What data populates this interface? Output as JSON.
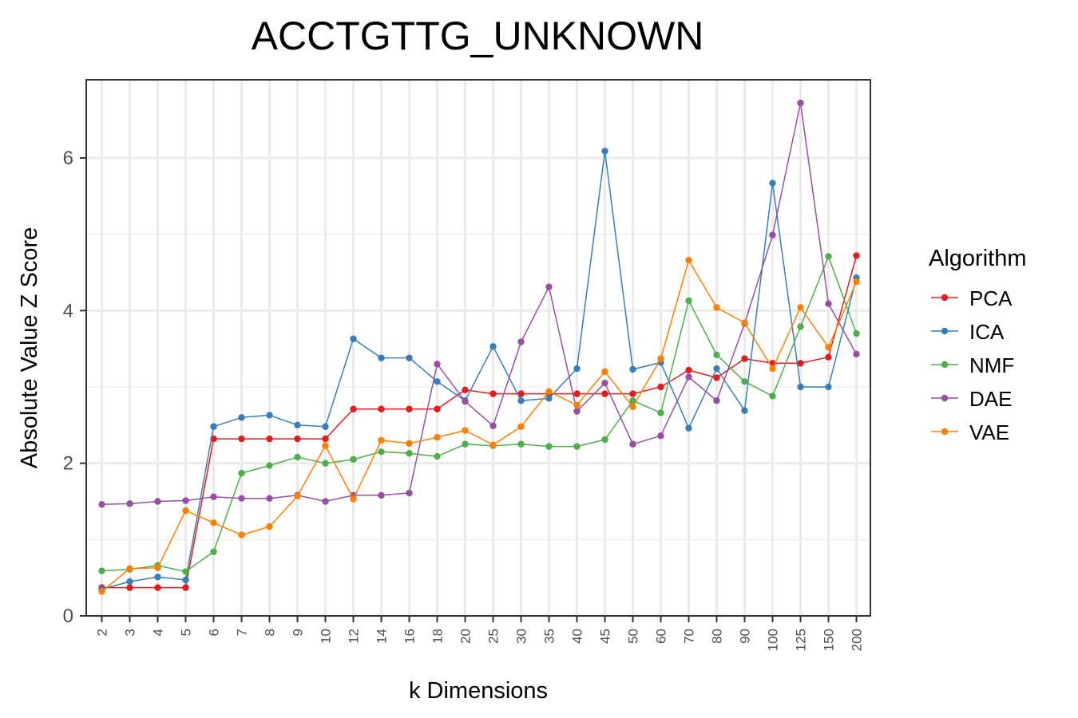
{
  "chart_data": {
    "type": "line",
    "title": "ACCTGTTG_UNKNOWN",
    "xlabel": "k Dimensions",
    "ylabel": "Absolute Value Z Score",
    "categories": [
      "2",
      "3",
      "4",
      "5",
      "6",
      "7",
      "8",
      "9",
      "10",
      "12",
      "14",
      "16",
      "18",
      "20",
      "25",
      "30",
      "35",
      "40",
      "45",
      "50",
      "60",
      "70",
      "80",
      "90",
      "100",
      "125",
      "150",
      "200"
    ],
    "ylim": [
      0,
      7
    ],
    "yticks": [
      0,
      2,
      4,
      6
    ],
    "grid": true,
    "legend_title": "Algorithm",
    "legend_position": "right",
    "series": [
      {
        "name": "PCA",
        "color": "#e41a1c",
        "values": [
          0.37,
          0.37,
          0.37,
          0.37,
          2.32,
          2.32,
          2.32,
          2.32,
          2.32,
          2.71,
          2.71,
          2.71,
          2.71,
          2.96,
          2.91,
          2.91,
          2.91,
          2.91,
          2.91,
          2.91,
          3.0,
          3.22,
          3.12,
          3.37,
          3.31,
          3.31,
          3.39,
          4.72
        ]
      },
      {
        "name": "ICA",
        "color": "#377eb8",
        "values": [
          0.35,
          0.45,
          0.51,
          0.47,
          2.48,
          2.6,
          2.63,
          2.5,
          2.48,
          3.63,
          3.38,
          3.38,
          3.07,
          2.82,
          3.53,
          2.82,
          2.85,
          3.24,
          6.09,
          3.23,
          3.32,
          2.46,
          3.24,
          2.69,
          5.67,
          3.0,
          3.0,
          4.43
        ]
      },
      {
        "name": "NMF",
        "color": "#4daf4a",
        "values": [
          0.59,
          0.61,
          0.66,
          0.58,
          0.84,
          1.87,
          1.97,
          2.08,
          2.0,
          2.05,
          2.15,
          2.13,
          2.09,
          2.25,
          2.23,
          2.25,
          2.22,
          2.22,
          2.31,
          2.82,
          2.66,
          4.13,
          3.42,
          3.07,
          2.88,
          3.79,
          4.71,
          3.7
        ]
      },
      {
        "name": "DAE",
        "color": "#984ea3",
        "values": [
          1.46,
          1.47,
          1.5,
          1.51,
          1.56,
          1.54,
          1.54,
          1.58,
          1.5,
          1.58,
          1.58,
          1.61,
          3.3,
          2.81,
          2.49,
          3.59,
          4.31,
          2.68,
          3.05,
          2.25,
          2.36,
          3.13,
          2.82,
          3.83,
          4.99,
          6.72,
          4.09,
          3.43
        ]
      },
      {
        "name": "VAE",
        "color": "#ff7f00",
        "values": [
          0.32,
          0.62,
          0.63,
          1.38,
          1.22,
          1.06,
          1.17,
          1.57,
          2.23,
          1.53,
          2.3,
          2.26,
          2.34,
          2.43,
          2.24,
          2.48,
          2.94,
          2.76,
          3.2,
          2.74,
          3.37,
          4.66,
          4.04,
          3.84,
          3.24,
          4.04,
          3.52,
          4.38
        ]
      }
    ]
  }
}
